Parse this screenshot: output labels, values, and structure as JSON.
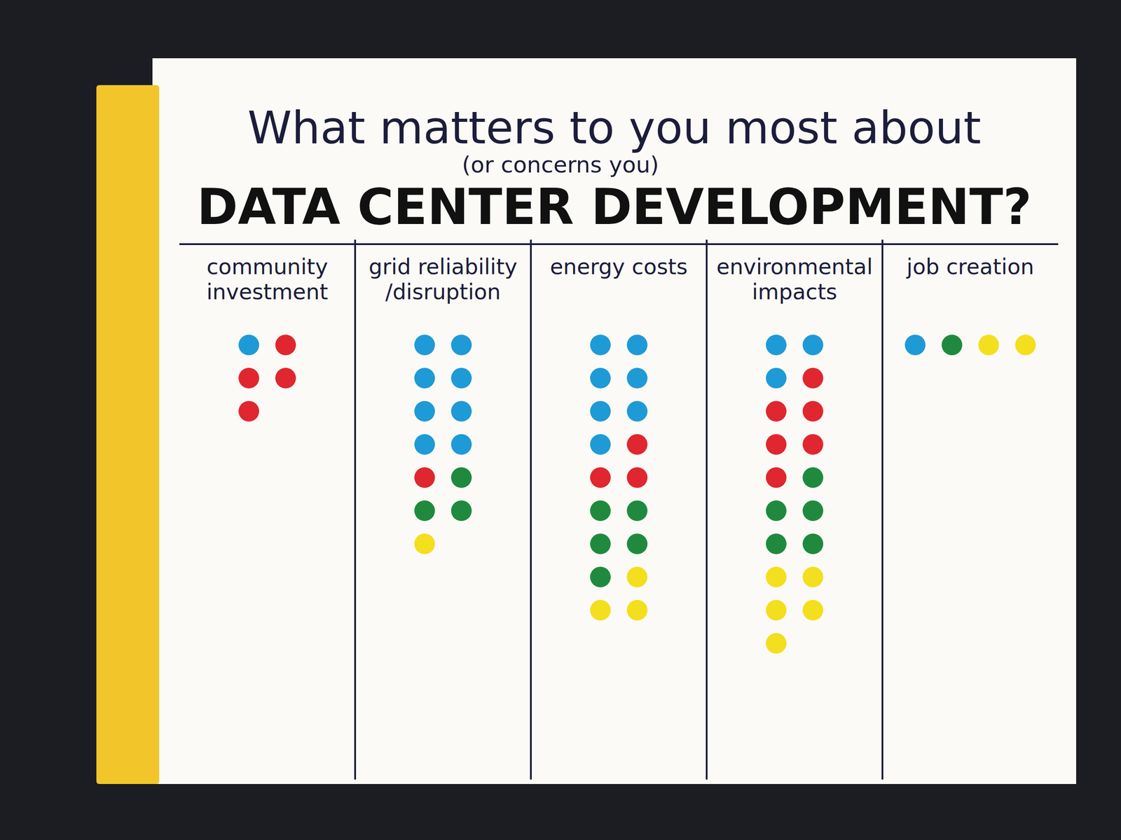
{
  "chart_data": {
    "type": "dot",
    "title": "What matters to you most about",
    "annotation": "(or concerns you)",
    "subtitle": "DATA CENTER DEVELOPMENT?",
    "categories": [
      "community investment",
      "grid reliability /disruption",
      "energy costs",
      "environmental impacts",
      "job creation"
    ],
    "series": [
      {
        "color": "#1e9ad6",
        "values": [
          1,
          8,
          7,
          3,
          1
        ]
      },
      {
        "color": "#e0262f",
        "values": [
          4,
          1,
          3,
          6,
          0
        ]
      },
      {
        "color": "#1f8a3d",
        "values": [
          0,
          3,
          5,
          5,
          1
        ]
      },
      {
        "color": "#f3df1e",
        "values": [
          0,
          1,
          3,
          5,
          2
        ]
      }
    ],
    "tick_labels": "x"
  }
}
